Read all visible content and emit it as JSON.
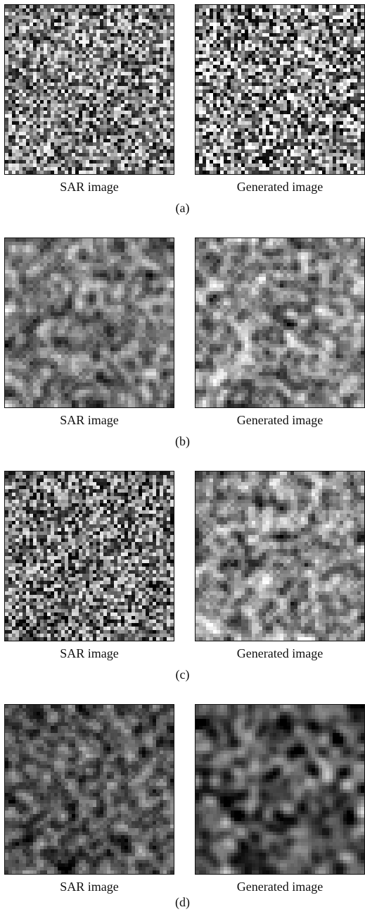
{
  "figure": {
    "panels": [
      {
        "id": "a",
        "sub_label": "(a)",
        "sar_label": "SAR image",
        "generated_label": "Generated image",
        "sar_texture": {
          "mean": 0.5,
          "contrast": 0.95,
          "smooth": 0,
          "seed": 11
        },
        "gen_texture": {
          "mean": 0.52,
          "contrast": 1.1,
          "smooth": 0,
          "seed": 23
        }
      },
      {
        "id": "b",
        "sub_label": "(b)",
        "sar_label": "SAR image",
        "generated_label": "Generated image",
        "sar_texture": {
          "mean": 0.5,
          "contrast": 0.95,
          "smooth": 1,
          "seed": 37
        },
        "gen_texture": {
          "mean": 0.5,
          "contrast": 1.05,
          "smooth": 1,
          "seed": 41
        }
      },
      {
        "id": "c",
        "sub_label": "(c)",
        "sar_label": "SAR image",
        "generated_label": "Generated image",
        "sar_texture": {
          "mean": 0.46,
          "contrast": 0.95,
          "smooth": 0,
          "seed": 53
        },
        "gen_texture": {
          "mean": 0.52,
          "contrast": 1.05,
          "smooth": 1,
          "seed": 67
        }
      },
      {
        "id": "d",
        "sub_label": "(d)",
        "sar_label": "SAR image",
        "generated_label": "Generated image",
        "sar_texture": {
          "mean": 0.3,
          "contrast": 0.85,
          "smooth": 1,
          "seed": 79
        },
        "gen_texture": {
          "mean": 0.34,
          "contrast": 1.0,
          "smooth": 2,
          "seed": 83
        }
      }
    ]
  }
}
